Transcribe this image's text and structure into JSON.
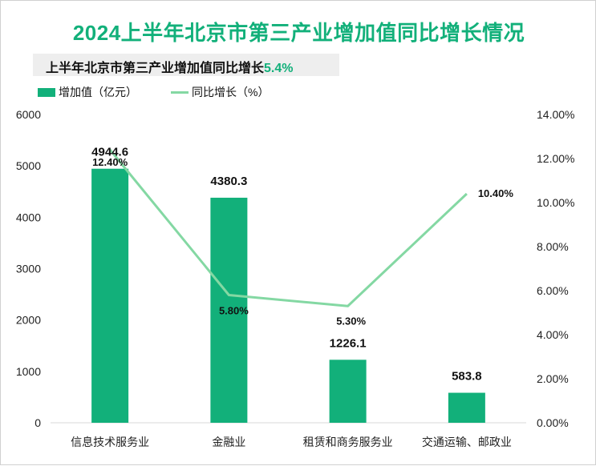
{
  "title": "2024上半年北京市第三产业增加值同比增长情况",
  "subtitle": {
    "prefix": "上半年北京市第三产业增加值同比增长",
    "value": "5.4%"
  },
  "colors": {
    "accent": "#12b07a",
    "line": "#84d8a3",
    "title": "#12b07a"
  },
  "chart_data": {
    "type": "bar",
    "categories": [
      "信息技术服务业",
      "金融业",
      "租赁和商务服务业",
      "交通运输、邮政业"
    ],
    "series": [
      {
        "name": "增加值（亿元）",
        "type": "bar",
        "axis": "left",
        "values": [
          4944.6,
          4380.3,
          1226.1,
          583.8
        ],
        "labels": [
          "4944.6",
          "4380.3",
          "1226.1",
          "583.8"
        ]
      },
      {
        "name": "同比增长（%）",
        "type": "line",
        "axis": "right",
        "values": [
          12.4,
          5.8,
          5.3,
          10.4
        ],
        "labels": [
          "12.40%",
          "5.80%",
          "5.30%",
          "10.40%"
        ]
      }
    ],
    "y_left": {
      "ylim": [
        0,
        6000
      ],
      "ticks": [
        "0",
        "1000",
        "2000",
        "3000",
        "4000",
        "5000",
        "6000"
      ]
    },
    "y_right": {
      "ylim": [
        0,
        14
      ],
      "ticks": [
        "0.00%",
        "2.00%",
        "4.00%",
        "6.00%",
        "8.00%",
        "10.00%",
        "12.00%",
        "14.00%"
      ]
    },
    "grid": false,
    "legend_position": "top-left"
  }
}
